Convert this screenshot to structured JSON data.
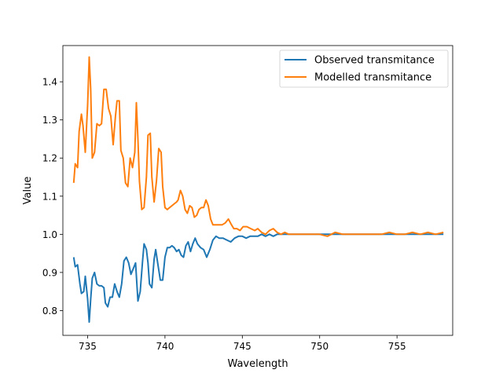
{
  "chart_data": {
    "type": "line",
    "title": "",
    "xlabel": "Wavelength",
    "ylabel": "Value",
    "xlim": [
      733.4,
      758.6
    ],
    "ylim": [
      0.735,
      1.495
    ],
    "xticks": [
      735,
      740,
      745,
      750,
      755
    ],
    "yticks": [
      0.8,
      0.9,
      1.0,
      1.1,
      1.2,
      1.3,
      1.4
    ],
    "xtick_labels": [
      "735",
      "740",
      "745",
      "750",
      "755"
    ],
    "ytick_labels": [
      "0.8",
      "0.9",
      "1.0",
      "1.1",
      "1.2",
      "1.3",
      "1.4"
    ],
    "grid": false,
    "legend_position": "upper-right",
    "series": [
      {
        "name": "Observed transmitance",
        "color": "#1f77b4",
        "points": [
          [
            734.1,
            0.94
          ],
          [
            734.2,
            0.915
          ],
          [
            734.35,
            0.92
          ],
          [
            734.5,
            0.87
          ],
          [
            734.6,
            0.845
          ],
          [
            734.75,
            0.85
          ],
          [
            734.85,
            0.89
          ],
          [
            735.0,
            0.83
          ],
          [
            735.1,
            0.77
          ],
          [
            735.2,
            0.83
          ],
          [
            735.3,
            0.885
          ],
          [
            735.45,
            0.9
          ],
          [
            735.6,
            0.87
          ],
          [
            735.75,
            0.865
          ],
          [
            735.9,
            0.865
          ],
          [
            736.05,
            0.86
          ],
          [
            736.15,
            0.82
          ],
          [
            736.3,
            0.81
          ],
          [
            736.45,
            0.835
          ],
          [
            736.6,
            0.835
          ],
          [
            736.75,
            0.87
          ],
          [
            736.9,
            0.85
          ],
          [
            737.05,
            0.835
          ],
          [
            737.2,
            0.87
          ],
          [
            737.35,
            0.93
          ],
          [
            737.5,
            0.94
          ],
          [
            737.65,
            0.925
          ],
          [
            737.8,
            0.895
          ],
          [
            737.95,
            0.91
          ],
          [
            738.1,
            0.925
          ],
          [
            738.25,
            0.825
          ],
          [
            738.4,
            0.85
          ],
          [
            738.55,
            0.93
          ],
          [
            738.65,
            0.975
          ],
          [
            738.8,
            0.96
          ],
          [
            738.9,
            0.925
          ],
          [
            739.0,
            0.87
          ],
          [
            739.15,
            0.86
          ],
          [
            739.3,
            0.935
          ],
          [
            739.4,
            0.96
          ],
          [
            739.55,
            0.92
          ],
          [
            739.7,
            0.88
          ],
          [
            739.85,
            0.88
          ],
          [
            740.0,
            0.94
          ],
          [
            740.15,
            0.965
          ],
          [
            740.3,
            0.965
          ],
          [
            740.45,
            0.97
          ],
          [
            740.6,
            0.965
          ],
          [
            740.75,
            0.955
          ],
          [
            740.9,
            0.96
          ],
          [
            741.05,
            0.945
          ],
          [
            741.2,
            0.94
          ],
          [
            741.35,
            0.97
          ],
          [
            741.5,
            0.98
          ],
          [
            741.65,
            0.955
          ],
          [
            741.8,
            0.975
          ],
          [
            741.95,
            0.99
          ],
          [
            742.1,
            0.975
          ],
          [
            742.3,
            0.965
          ],
          [
            742.5,
            0.96
          ],
          [
            742.7,
            0.94
          ],
          [
            742.9,
            0.96
          ],
          [
            743.1,
            0.985
          ],
          [
            743.3,
            0.995
          ],
          [
            743.5,
            0.99
          ],
          [
            743.75,
            0.99
          ],
          [
            744.0,
            0.985
          ],
          [
            744.25,
            0.98
          ],
          [
            744.5,
            0.99
          ],
          [
            744.75,
            0.995
          ],
          [
            745.0,
            0.995
          ],
          [
            745.25,
            0.99
          ],
          [
            745.5,
            0.995
          ],
          [
            745.75,
            0.995
          ],
          [
            746.0,
            0.995
          ],
          [
            746.25,
            1.0
          ],
          [
            746.5,
            0.995
          ],
          [
            746.75,
            1.0
          ],
          [
            747.0,
            0.995
          ],
          [
            747.25,
            1.0
          ],
          [
            747.5,
            1.0
          ],
          [
            748.0,
            1.0
          ],
          [
            748.5,
            1.0
          ],
          [
            749.0,
            1.0
          ],
          [
            749.5,
            1.0
          ],
          [
            750.0,
            1.0
          ],
          [
            750.5,
            1.0
          ],
          [
            751.0,
            1.0
          ],
          [
            751.5,
            1.0
          ],
          [
            752.0,
            1.0
          ],
          [
            752.5,
            1.0
          ],
          [
            753.0,
            1.0
          ],
          [
            753.5,
            1.0
          ],
          [
            754.0,
            1.0
          ],
          [
            754.5,
            1.0
          ],
          [
            755.0,
            1.0
          ],
          [
            755.5,
            1.0
          ],
          [
            756.0,
            1.0
          ],
          [
            756.5,
            1.0
          ],
          [
            757.0,
            1.0
          ],
          [
            757.5,
            1.0
          ],
          [
            758.0,
            1.0
          ]
        ]
      },
      {
        "name": "Modelled transmitance",
        "color": "#ff7f0e",
        "points": [
          [
            734.1,
            1.135
          ],
          [
            734.2,
            1.185
          ],
          [
            734.35,
            1.175
          ],
          [
            734.45,
            1.27
          ],
          [
            734.6,
            1.315
          ],
          [
            734.7,
            1.285
          ],
          [
            734.85,
            1.215
          ],
          [
            735.0,
            1.34
          ],
          [
            735.1,
            1.465
          ],
          [
            735.2,
            1.38
          ],
          [
            735.3,
            1.2
          ],
          [
            735.45,
            1.215
          ],
          [
            735.6,
            1.29
          ],
          [
            735.75,
            1.285
          ],
          [
            735.9,
            1.29
          ],
          [
            736.05,
            1.38
          ],
          [
            736.2,
            1.38
          ],
          [
            736.35,
            1.33
          ],
          [
            736.5,
            1.31
          ],
          [
            736.65,
            1.235
          ],
          [
            736.8,
            1.31
          ],
          [
            736.9,
            1.35
          ],
          [
            737.05,
            1.35
          ],
          [
            737.15,
            1.22
          ],
          [
            737.3,
            1.2
          ],
          [
            737.45,
            1.135
          ],
          [
            737.6,
            1.125
          ],
          [
            737.75,
            1.2
          ],
          [
            737.9,
            1.175
          ],
          [
            738.05,
            1.215
          ],
          [
            738.15,
            1.345
          ],
          [
            738.25,
            1.25
          ],
          [
            738.35,
            1.14
          ],
          [
            738.5,
            1.065
          ],
          [
            738.65,
            1.07
          ],
          [
            738.8,
            1.15
          ],
          [
            738.9,
            1.26
          ],
          [
            739.05,
            1.265
          ],
          [
            739.15,
            1.15
          ],
          [
            739.3,
            1.085
          ],
          [
            739.45,
            1.14
          ],
          [
            739.6,
            1.225
          ],
          [
            739.75,
            1.215
          ],
          [
            739.85,
            1.125
          ],
          [
            740.0,
            1.07
          ],
          [
            740.15,
            1.065
          ],
          [
            740.3,
            1.07
          ],
          [
            740.45,
            1.075
          ],
          [
            740.6,
            1.08
          ],
          [
            740.75,
            1.085
          ],
          [
            740.85,
            1.09
          ],
          [
            741.0,
            1.115
          ],
          [
            741.15,
            1.1
          ],
          [
            741.3,
            1.065
          ],
          [
            741.45,
            1.055
          ],
          [
            741.6,
            1.075
          ],
          [
            741.75,
            1.07
          ],
          [
            741.9,
            1.045
          ],
          [
            742.05,
            1.05
          ],
          [
            742.2,
            1.065
          ],
          [
            742.35,
            1.07
          ],
          [
            742.5,
            1.07
          ],
          [
            742.65,
            1.09
          ],
          [
            742.8,
            1.075
          ],
          [
            742.95,
            1.04
          ],
          [
            743.1,
            1.025
          ],
          [
            743.3,
            1.025
          ],
          [
            743.5,
            1.025
          ],
          [
            743.7,
            1.025
          ],
          [
            743.9,
            1.03
          ],
          [
            744.1,
            1.04
          ],
          [
            744.3,
            1.025
          ],
          [
            744.45,
            1.015
          ],
          [
            744.65,
            1.015
          ],
          [
            744.85,
            1.01
          ],
          [
            745.05,
            1.02
          ],
          [
            745.3,
            1.02
          ],
          [
            745.55,
            1.015
          ],
          [
            745.8,
            1.01
          ],
          [
            746.0,
            1.015
          ],
          [
            746.25,
            1.005
          ],
          [
            746.5,
            1.0
          ],
          [
            746.75,
            1.01
          ],
          [
            747.0,
            1.015
          ],
          [
            747.25,
            1.005
          ],
          [
            747.5,
            1.0
          ],
          [
            747.75,
            1.005
          ],
          [
            748.0,
            1.0
          ],
          [
            748.5,
            1.0
          ],
          [
            749.0,
            1.0
          ],
          [
            749.5,
            1.0
          ],
          [
            750.0,
            1.0
          ],
          [
            750.5,
            0.995
          ],
          [
            751.0,
            1.005
          ],
          [
            751.5,
            1.0
          ],
          [
            752.0,
            1.0
          ],
          [
            752.5,
            1.0
          ],
          [
            753.0,
            1.0
          ],
          [
            753.5,
            1.0
          ],
          [
            754.0,
            1.0
          ],
          [
            754.5,
            1.005
          ],
          [
            755.0,
            1.0
          ],
          [
            755.5,
            1.0
          ],
          [
            756.0,
            1.005
          ],
          [
            756.5,
            1.0
          ],
          [
            757.0,
            1.005
          ],
          [
            757.5,
            1.0
          ],
          [
            758.0,
            1.005
          ]
        ]
      }
    ]
  }
}
